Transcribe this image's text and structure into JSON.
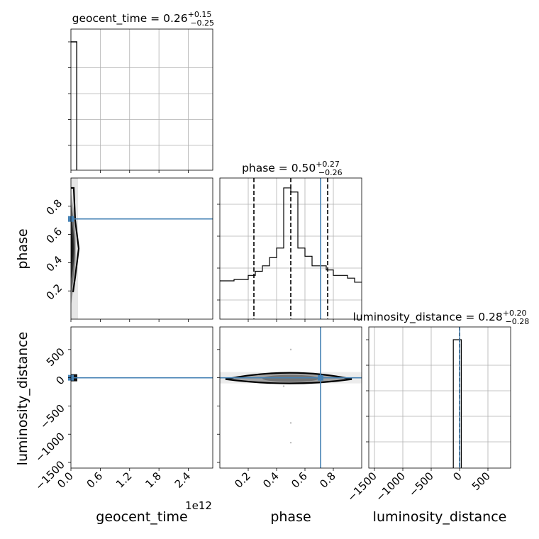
{
  "chart_data": {
    "type": "corner",
    "parameters": [
      "geocent_time",
      "phase",
      "luminosity_distance"
    ],
    "xlabels": [
      "geocent_time",
      "phase",
      "luminosity_distance"
    ],
    "ylabels": [
      "phase",
      "luminosity_distance"
    ],
    "titles": [
      {
        "name": "geocent_time",
        "median": "0.26",
        "plus": "+0.15",
        "minus": "−0.25"
      },
      {
        "name": "phase",
        "median": "0.50",
        "plus": "+0.27",
        "minus": "−0.26"
      },
      {
        "name": "luminosity_distance",
        "median": "0.28",
        "plus": "+0.20",
        "minus": "−0.28"
      }
    ],
    "offset_text": "1e12",
    "ranges": {
      "geocent_time": [
        0,
        2900000000000.0
      ],
      "phase": [
        0.0,
        1.0
      ],
      "luminosity_distance": [
        -1600,
        900
      ]
    },
    "ticks": {
      "geocent_time": {
        "values": [
          0,
          600000000000.0,
          1200000000000.0,
          1800000000000.0,
          2400000000000.0
        ],
        "labels": [
          "0.0",
          "0.6",
          "1.2",
          "1.8",
          "2.4"
        ]
      },
      "phase_x": {
        "values": [
          0.2,
          0.4,
          0.6,
          0.8
        ],
        "labels": [
          "0.2",
          "0.4",
          "0.6",
          "0.8"
        ]
      },
      "phase_y": {
        "values": [
          0.2,
          0.4,
          0.6,
          0.8
        ],
        "labels": [
          "0.2",
          "0.4",
          "0.6",
          "0.8"
        ]
      },
      "luminosity_distance_x": {
        "values": [
          -1500,
          -1000,
          -500,
          0,
          500
        ],
        "labels": [
          "−1500",
          "−1000",
          "−500",
          "0",
          "500"
        ]
      },
      "luminosity_distance_y": {
        "values": [
          -1500,
          -1000,
          -500,
          0,
          500
        ],
        "labels": [
          "−1500",
          "−1000",
          "−500",
          "0",
          "500"
        ]
      }
    },
    "injection": {
      "geocent_time": 0,
      "phase": 0.71,
      "luminosity_distance": 0
    },
    "quantile_lines": {
      "phase": [
        0.24,
        0.5,
        0.76
      ],
      "luminosity_distance": [
        0.0,
        0.28,
        0.48
      ]
    },
    "histograms": {
      "geocent_time": {
        "bin_edges": [
          0,
          120000000000.0
        ],
        "counts": [
          1.0
        ]
      },
      "phase": {
        "bin_edges": [
          0.0,
          0.05,
          0.1,
          0.15,
          0.2,
          0.25,
          0.3,
          0.35,
          0.4,
          0.45,
          0.5,
          0.55,
          0.6,
          0.65,
          0.7,
          0.75,
          0.8,
          0.85,
          0.9,
          0.95,
          1.0
        ],
        "counts": [
          0.28,
          0.28,
          0.29,
          0.29,
          0.32,
          0.35,
          0.39,
          0.45,
          0.52,
          0.96,
          0.93,
          0.52,
          0.46,
          0.39,
          0.39,
          0.36,
          0.32,
          0.32,
          0.3,
          0.27
        ]
      },
      "luminosity_distance": {
        "bin_edges": [
          -110,
          0,
          30
        ],
        "counts": [
          1.0,
          1.0
        ]
      }
    },
    "grid": true
  },
  "colors": {
    "injection": "#4682b4",
    "grid": "#b0b0b0",
    "spine": "#000000",
    "contour_fill": "#1a1a1a"
  }
}
